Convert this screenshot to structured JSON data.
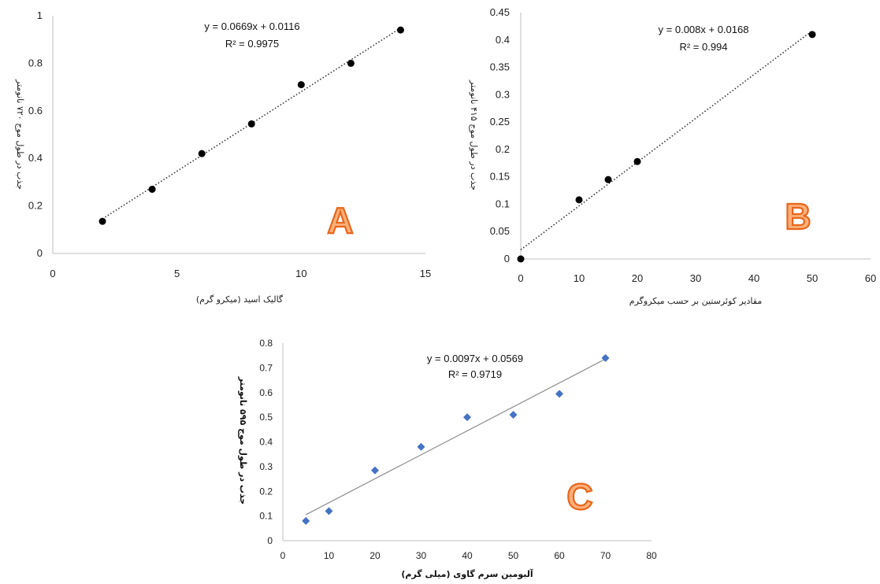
{
  "chart_data": [
    {
      "id": "A",
      "type": "scatter",
      "panel_label": "A",
      "xlabel": "گالیک اسید (میکرو گرم)",
      "ylabel": "جذب در طول موج ۷۲۰ نانومتر",
      "xlim": [
        0,
        15
      ],
      "ylim": [
        0,
        1
      ],
      "xticks": [
        "0",
        "5",
        "10",
        "15"
      ],
      "yticks": [
        "0",
        "0.2",
        "0.4",
        "0.6",
        "0.8",
        "1"
      ],
      "x": [
        2,
        4,
        6,
        8,
        10,
        12,
        14
      ],
      "y": [
        0.135,
        0.27,
        0.42,
        0.545,
        0.71,
        0.8,
        0.94
      ],
      "marker_color": "#000000",
      "trendline": {
        "style": "dotted",
        "slope": 0.0669,
        "intercept": 0.0116
      },
      "equation": "y = 0.0669x + 0.0116",
      "r2": "R² = 0.9975"
    },
    {
      "id": "B",
      "type": "scatter",
      "panel_label": "B",
      "xlabel": "مقادیر کوئرستین بر حسب میکروگرم",
      "ylabel": "جذب در طول موج ۴۱۵ نانومتر",
      "xlim": [
        0,
        60
      ],
      "ylim": [
        0,
        0.45
      ],
      "xticks": [
        "0",
        "10",
        "20",
        "30",
        "40",
        "50",
        "60"
      ],
      "yticks": [
        "0",
        "0.05",
        "0.1",
        "0.15",
        "0.2",
        "0.25",
        "0.3",
        "0.35",
        "0.4",
        "0.45"
      ],
      "x": [
        0,
        10,
        15,
        20,
        50
      ],
      "y": [
        0,
        0.108,
        0.145,
        0.178,
        0.41
      ],
      "marker_color": "#000000",
      "trendline": {
        "style": "dotted",
        "slope": 0.008,
        "intercept": 0.0168
      },
      "equation": "y = 0.008x + 0.0168",
      "r2": "R² = 0.994"
    },
    {
      "id": "C",
      "type": "scatter",
      "panel_label": "C",
      "xlabel": "آلبومین سرم گاوی (میلی گرم)",
      "ylabel": "جذب در طول موج ۵۹۵ نانومتر",
      "xlim": [
        0,
        80
      ],
      "ylim": [
        0,
        0.8
      ],
      "xticks": [
        "0",
        "10",
        "20",
        "30",
        "40",
        "50",
        "60",
        "70",
        "80"
      ],
      "yticks": [
        "0",
        "0.1",
        "0.2",
        "0.3",
        "0.4",
        "0.5",
        "0.6",
        "0.7",
        "0.8"
      ],
      "x": [
        5,
        10,
        20,
        30,
        40,
        50,
        60,
        70
      ],
      "y": [
        0.08,
        0.12,
        0.285,
        0.38,
        0.5,
        0.51,
        0.595,
        0.74
      ],
      "marker_color": "#4472c4",
      "trendline": {
        "style": "solid",
        "slope": 0.0097,
        "intercept": 0.0569
      },
      "equation": "y = 0.0097x + 0.0569",
      "r2": "R² = 0.9719"
    }
  ]
}
